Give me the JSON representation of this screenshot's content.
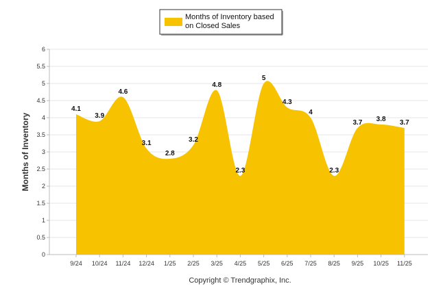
{
  "chart_data": {
    "type": "area",
    "categories": [
      "9/24",
      "10/24",
      "11/24",
      "12/24",
      "1/25",
      "2/25",
      "3/25",
      "4/25",
      "5/25",
      "6/25",
      "7/25",
      "8/25",
      "9/25",
      "10/25",
      "11/25"
    ],
    "series": [
      {
        "name": "Months of Inventory based on Closed Sales",
        "values": [
          4.1,
          3.9,
          4.6,
          3.1,
          2.8,
          3.2,
          4.8,
          2.3,
          5,
          4.3,
          4,
          2.3,
          3.7,
          3.8,
          3.7
        ],
        "color": "#F7C200"
      }
    ],
    "legend": [
      "Months of Inventory based",
      "on Closed Sales"
    ],
    "ylabel": "Months of Inventory",
    "xlabel": "",
    "ylim": [
      0,
      6
    ],
    "yticks": [
      "0",
      "0.5",
      "1",
      "1.5",
      "2",
      "2.5",
      "3",
      "3.5",
      "4",
      "4.5",
      "5",
      "5.5",
      "6"
    ],
    "grid": true,
    "footer": "Copyright © Trendgraphix, Inc."
  }
}
